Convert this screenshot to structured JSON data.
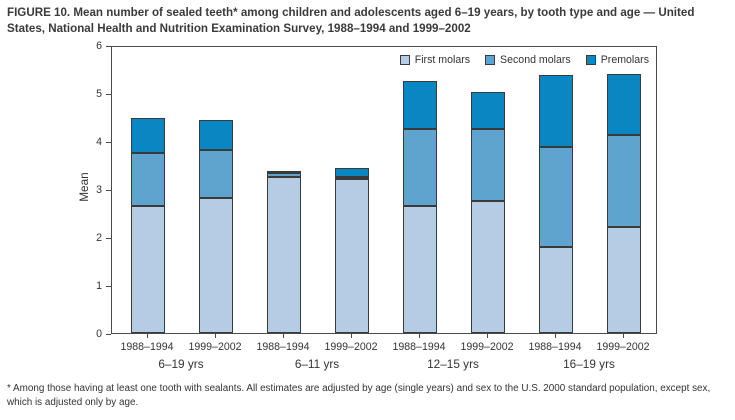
{
  "title": "FIGURE 10. Mean number of sealed teeth* among children and adolescents aged 6–19 years, by tooth type and age — United States, National Health and Nutrition Examination Survey, 1988–1994 and 1999–2002",
  "footnote": "* Among those having at least one tooth with sealants. All estimates are adjusted by age (single years) and sex to the U.S. 2000 standard population, except sex, which is adjusted only by age.",
  "chart_data": {
    "type": "bar",
    "stacked": true,
    "ylabel": "Mean",
    "xlabel": "",
    "ylim": [
      0,
      6
    ],
    "yticks": [
      0,
      1,
      2,
      3,
      4,
      5,
      6
    ],
    "grid": false,
    "legend_position": "top-right-inside",
    "categories": [
      "1988–1994",
      "1999–2002",
      "1988–1994",
      "1999–2002",
      "1988–1994",
      "1999–2002",
      "1988–1994",
      "1999–2002"
    ],
    "group_labels": [
      "6–19 yrs",
      "6–11 yrs",
      "12–15 yrs",
      "16–19 yrs"
    ],
    "series": [
      {
        "name": "First molars",
        "color": "#b5cde4",
        "values": [
          2.65,
          2.82,
          3.24,
          3.2,
          2.65,
          2.76,
          1.8,
          2.21
        ]
      },
      {
        "name": "Second molars",
        "color": "#5fa4cf",
        "values": [
          1.1,
          0.99,
          0.1,
          0.03,
          1.61,
          1.5,
          2.08,
          1.92
        ]
      },
      {
        "name": "Premolars",
        "color": "#0987c3",
        "values": [
          0.73,
          0.62,
          0.04,
          0.2,
          1.0,
          0.77,
          1.5,
          1.27
        ]
      }
    ],
    "totals": [
      4.48,
      4.43,
      3.38,
      3.43,
      5.26,
      5.03,
      5.38,
      5.4
    ]
  },
  "colors": {
    "axis": "#4a4a4a",
    "bar_border": "#3a3a3a",
    "text": "#333333"
  }
}
